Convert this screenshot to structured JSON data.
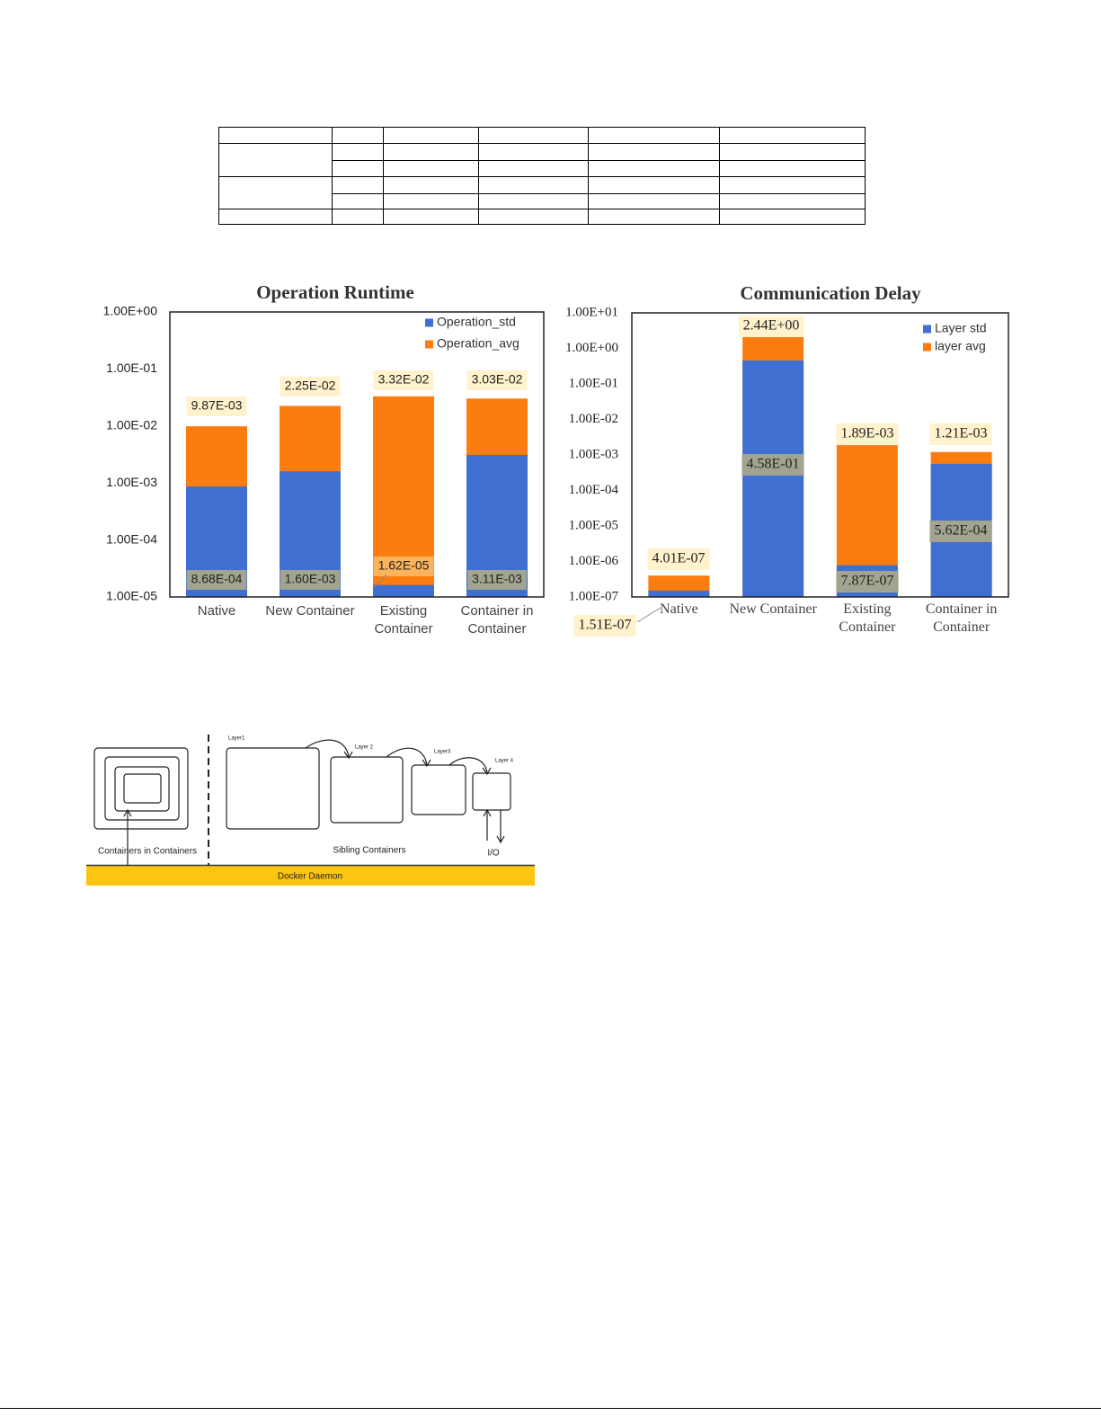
{
  "chart_data": [
    {
      "type": "bar",
      "title": "Operation Runtime",
      "categories": [
        "Native",
        "New Container",
        "Existing Container",
        "Container in Container"
      ],
      "series": [
        {
          "name": "Operation_std",
          "color": "#3f6fd1",
          "values": [
            0.000868,
            0.0016,
            1.62e-05,
            0.00311
          ],
          "value_labels": [
            "8.68E-04",
            "1.60E-03",
            "1.62E-05",
            "3.11E-03"
          ]
        },
        {
          "name": "Operation_avg",
          "color": "#fb7d0f",
          "values": [
            0.00987,
            0.0225,
            0.0332,
            0.0303
          ],
          "value_labels": [
            "9.87E-03",
            "2.25E-02",
            "3.32E-02",
            "3.03E-02"
          ]
        }
      ],
      "log_scale": true,
      "ylim": [
        1e-05,
        1
      ],
      "yticks": [
        {
          "value": 1,
          "label": "1.00E+00"
        },
        {
          "value": 0.1,
          "label": "1.00E-01"
        },
        {
          "value": 0.01,
          "label": "1.00E-02"
        },
        {
          "value": 0.001,
          "label": "1.00E-03"
        },
        {
          "value": 0.0001,
          "label": "1.00E-04"
        },
        {
          "value": 1e-05,
          "label": "1.00E-05"
        }
      ],
      "grid": false,
      "legend": "upper right"
    },
    {
      "type": "bar",
      "title": "Communication Delay",
      "categories": [
        "Native",
        "New Container",
        "Existing Container",
        "Container in Container"
      ],
      "series": [
        {
          "name": "Layer std",
          "color": "#3f6fd1",
          "values": [
            1.51e-07,
            0.458,
            7.87e-07,
            0.000562
          ],
          "value_labels": [
            "1.51E-07",
            "4.58E-01",
            "7.87E-07",
            "5.62E-04"
          ]
        },
        {
          "name": "layer avg",
          "color": "#fb7d0f",
          "values": [
            4.01e-07,
            2.44,
            0.00189,
            0.00121
          ],
          "value_labels": [
            "4.01E-07",
            "2.44E+00",
            "1.89E-03",
            "1.21E-03"
          ]
        }
      ],
      "log_scale": true,
      "ylim": [
        1e-07,
        10
      ],
      "yticks": [
        {
          "value": 10,
          "label": "1.00E+01"
        },
        {
          "value": 1,
          "label": "1.00E+00"
        },
        {
          "value": 0.1,
          "label": "1.00E-01"
        },
        {
          "value": 0.01,
          "label": "1.00E-02"
        },
        {
          "value": 0.001,
          "label": "1.00E-03"
        },
        {
          "value": 0.0001,
          "label": "1.00E-04"
        },
        {
          "value": 1e-05,
          "label": "1.00E-05"
        },
        {
          "value": 1e-06,
          "label": "1.00E-06"
        },
        {
          "value": 1e-07,
          "label": "1.00E-07"
        }
      ],
      "grid": false,
      "legend": "upper right"
    }
  ],
  "diagram": {
    "layers": [
      "Layer1",
      "Layer 2",
      "Layer3",
      "Layer 4"
    ],
    "nested_label": "Containers in Containers",
    "sibling_label": "Sibling Containers",
    "io_label": "I/O",
    "daemon_label": "Docker Daemon"
  }
}
